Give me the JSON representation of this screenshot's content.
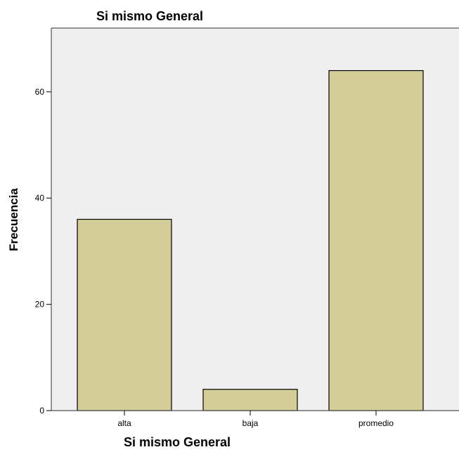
{
  "chart_data": {
    "type": "bar",
    "title": "Si mismo General",
    "xlabel": "Si mismo General",
    "ylabel": "Frecuencia",
    "categories": [
      "alta",
      "baja",
      "promedio"
    ],
    "values": [
      36,
      4,
      64
    ],
    "ylim": [
      0,
      72
    ],
    "yticks": [
      0,
      20,
      40,
      60
    ],
    "grid": false,
    "colors": {
      "bar_fill": "#D3CE98",
      "bar_stroke": "#000000",
      "plot_background": "#EFEFEF"
    }
  }
}
